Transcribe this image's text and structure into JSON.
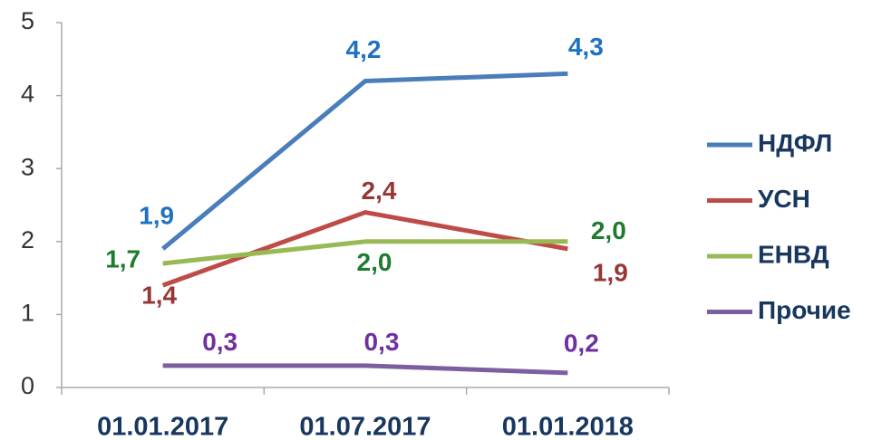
{
  "chart_data": {
    "type": "line",
    "categories": [
      "01.01.2017",
      "01.07.2017",
      "01.01.2018"
    ],
    "series": [
      {
        "name": "НДФЛ",
        "color": "#4a7ebb",
        "label_color": "#1f72c0",
        "values": [
          1.9,
          4.2,
          4.3
        ],
        "value_labels": [
          "1,9",
          "4,2",
          "4,3"
        ]
      },
      {
        "name": "УСН",
        "color": "#be4b48",
        "label_color": "#953735",
        "values": [
          1.4,
          2.4,
          1.9
        ],
        "value_labels": [
          "1,4",
          "2,4",
          "1,9"
        ]
      },
      {
        "name": "ЕНВД",
        "color": "#98b954",
        "label_color": "#1e7b2f",
        "values": [
          1.7,
          2.0,
          2.0
        ],
        "value_labels": [
          "1,7",
          "2,0",
          "2,0"
        ]
      },
      {
        "name": "Прочие",
        "color": "#7d5fa0",
        "label_color": "#7030a0",
        "values": [
          0.3,
          0.3,
          0.2
        ],
        "value_labels": [
          "0,3",
          "0,3",
          "0,2"
        ]
      }
    ],
    "ylim": [
      0,
      5
    ],
    "yticks": [
      0,
      1,
      2,
      3,
      4,
      5
    ],
    "grid": false,
    "legend": "right"
  }
}
